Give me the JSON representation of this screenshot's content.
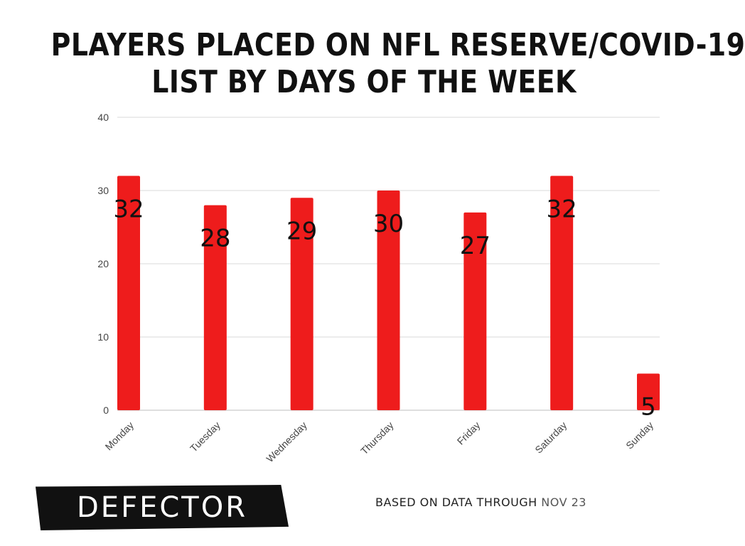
{
  "chart_data": {
    "type": "bar",
    "title_lines": [
      "PLAYERS PLACED ON NFL RESERVE/COVID-19",
      "LIST BY DAYS OF THE WEEK"
    ],
    "categories": [
      "Monday",
      "Tuesday",
      "Wednesday",
      "Thursday",
      "Friday",
      "Saturday",
      "Sunday"
    ],
    "values": [
      32,
      28,
      29,
      30,
      27,
      32,
      5
    ],
    "data_labels": [
      "32",
      "28",
      "29",
      "30",
      "27",
      "32",
      "5"
    ],
    "ylim": [
      0,
      40
    ],
    "yticks": [
      0,
      10,
      20,
      30,
      40
    ],
    "grid": true,
    "bar_color": "#ee1c1c",
    "grid_color": "#d9d9d9"
  },
  "footer": {
    "brand": "DEFECTOR",
    "note_prefix": "BASED ON DATA THROUGH",
    "note_date": "NOV 23"
  }
}
